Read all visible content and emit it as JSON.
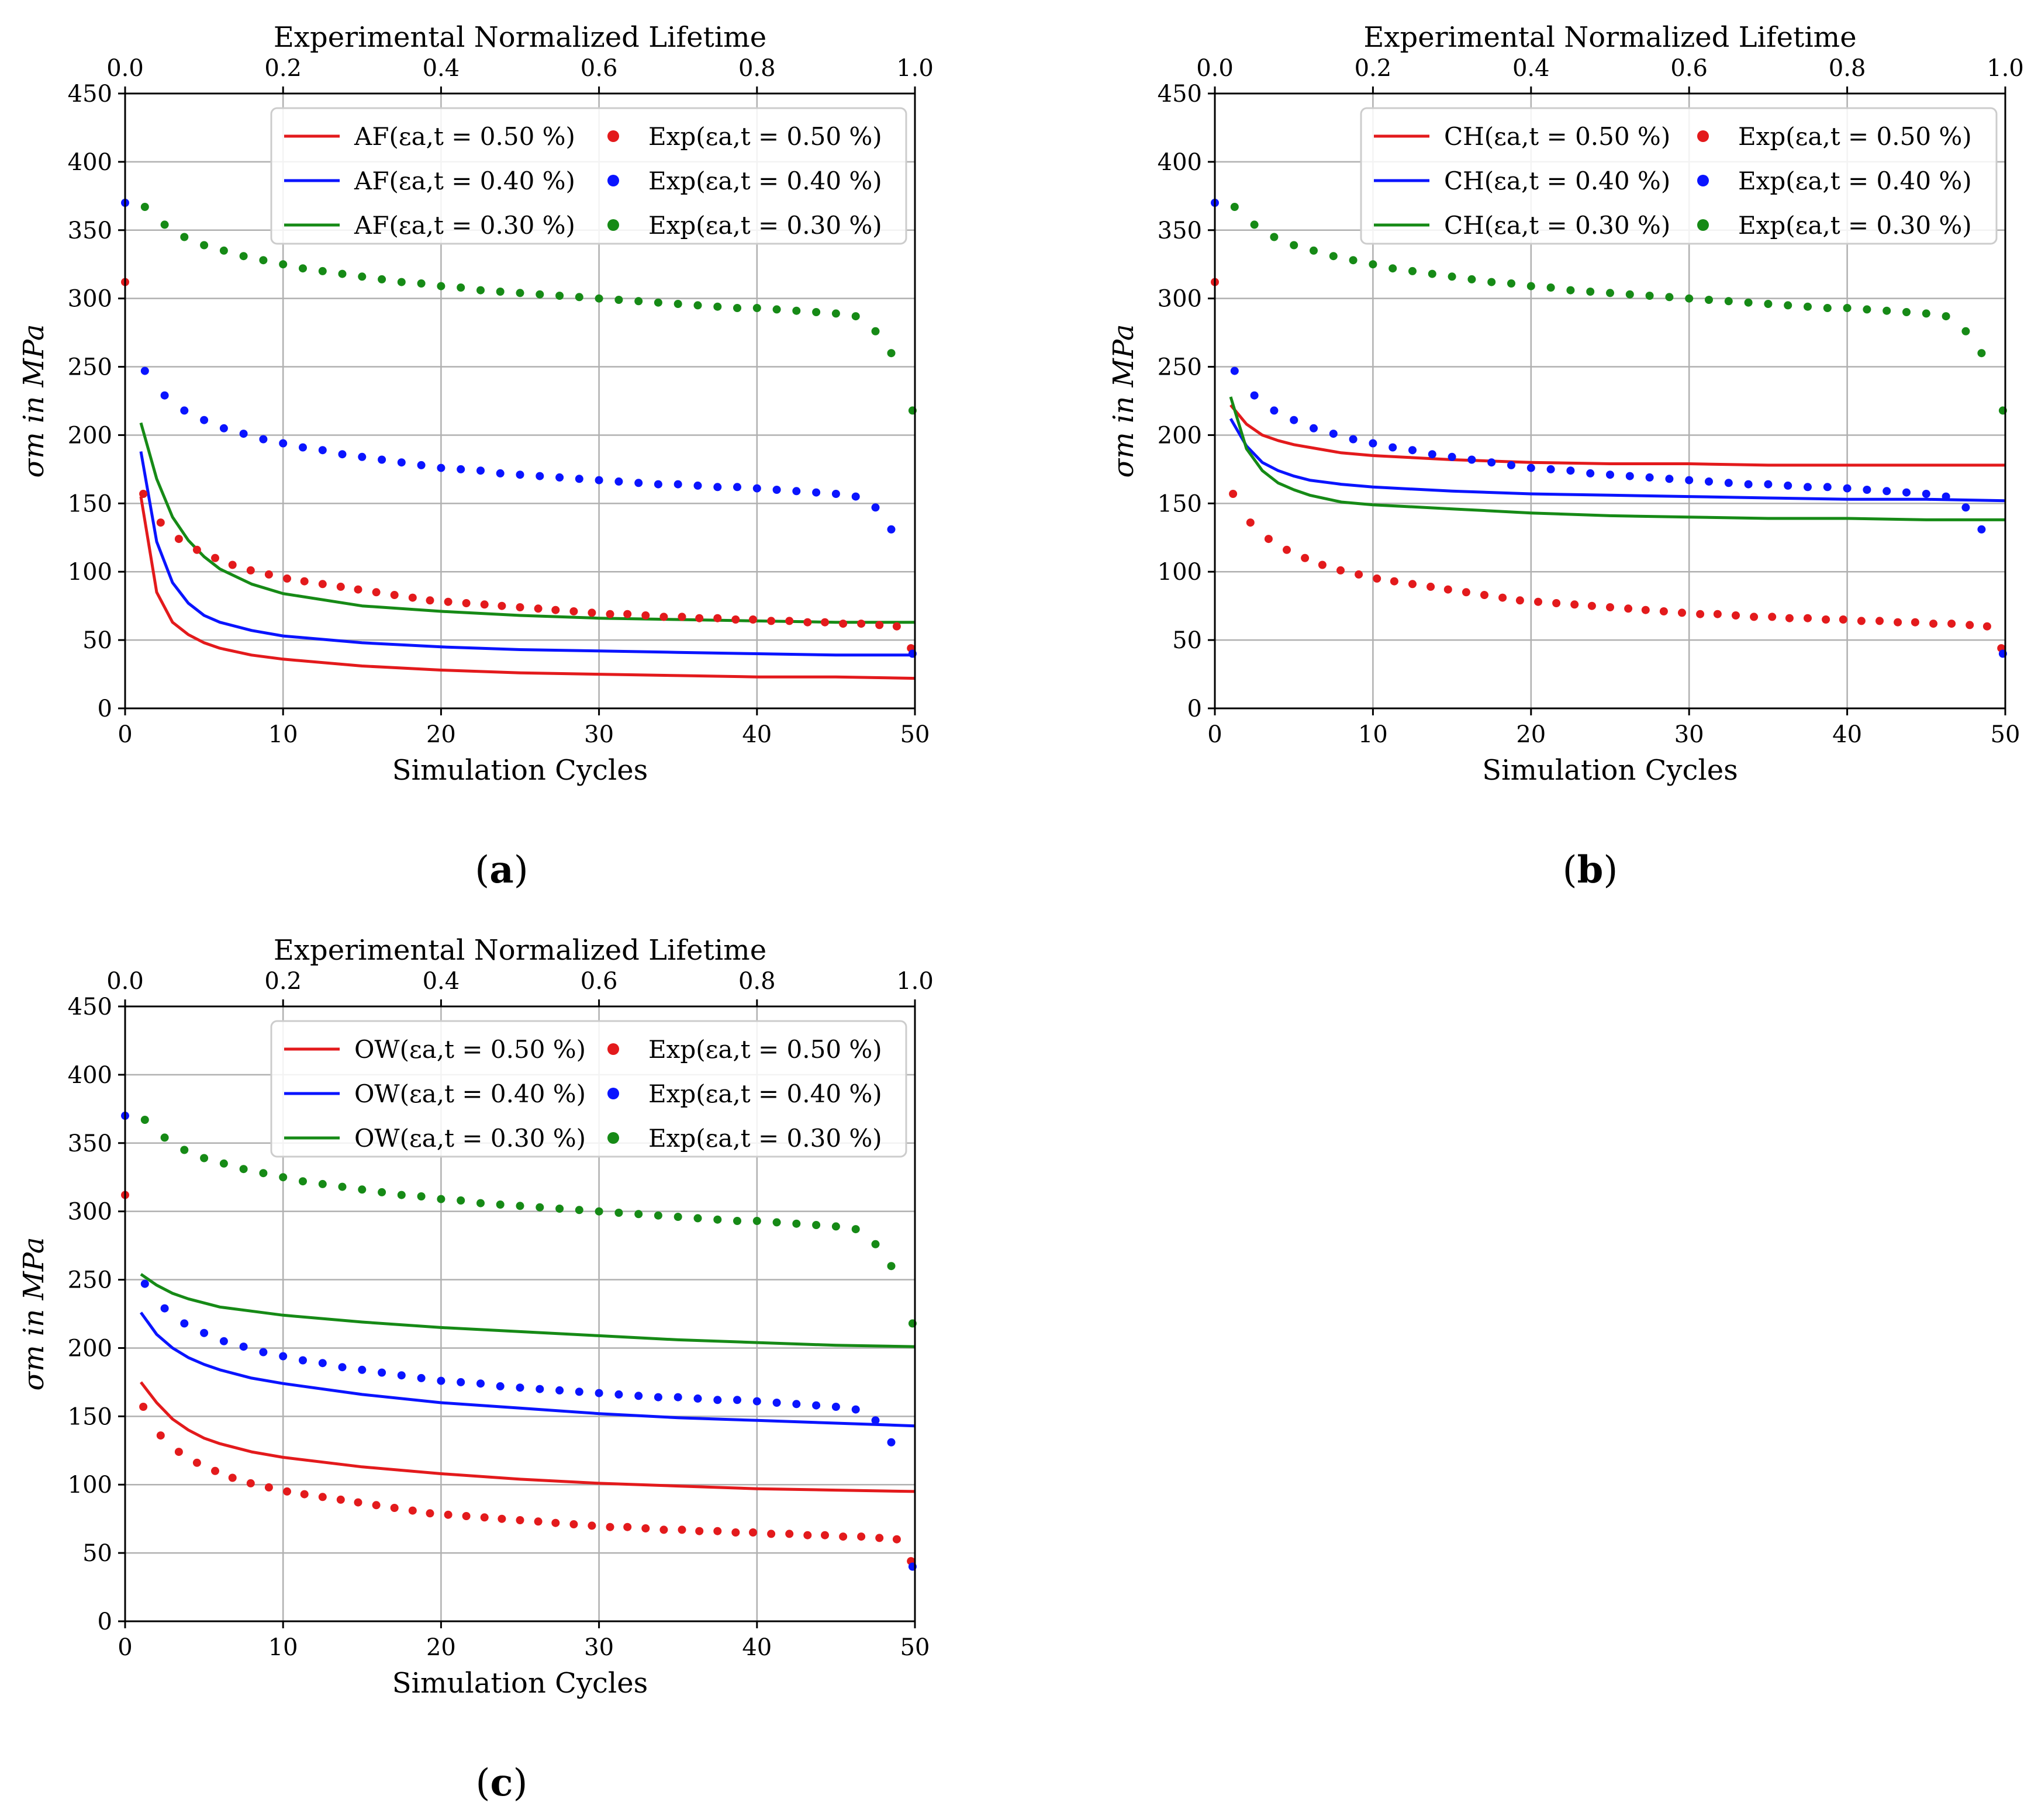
{
  "colors": {
    "red": "#e31a1c",
    "blue": "#0a14ff",
    "green": "#168a16",
    "grid": "#b0b0b0",
    "axis": "#000000"
  },
  "chart_data": [
    {
      "type": "line",
      "panel": "a",
      "panel_label": "a",
      "top_xlabel": "Experimental Normalized Lifetime",
      "top_xlim": [
        0,
        1
      ],
      "top_ticks": [
        "0.0",
        "0.2",
        "0.4",
        "0.6",
        "0.8",
        "1.0"
      ],
      "xlabel": "Simulation Cycles",
      "ylabel": "σm in MPa",
      "xlim": [
        0,
        50
      ],
      "ylim": [
        0,
        450
      ],
      "xticks": [
        "0",
        "10",
        "20",
        "30",
        "40",
        "50"
      ],
      "yticks": [
        "0",
        "50",
        "100",
        "150",
        "200",
        "250",
        "300",
        "350",
        "400",
        "450"
      ],
      "grid": true,
      "legend_position": "top-right",
      "legend": [
        {
          "name": "AF(εa,t = 0.50 %)",
          "color": "red",
          "kind": "line"
        },
        {
          "name": "Exp(εa,t = 0.50 %)",
          "color": "red",
          "kind": "dot"
        },
        {
          "name": "AF(εa,t = 0.40 %)",
          "color": "blue",
          "kind": "line"
        },
        {
          "name": "Exp(εa,t = 0.40 %)",
          "color": "blue",
          "kind": "dot"
        },
        {
          "name": "AF(εa,t = 0.30 %)",
          "color": "green",
          "kind": "line"
        },
        {
          "name": "Exp(εa,t = 0.30 %)",
          "color": "green",
          "kind": "dot"
        }
      ],
      "series": [
        {
          "name": "AF 0.50",
          "color": "red",
          "x": [
            1,
            2,
            3,
            4,
            5,
            6,
            8,
            10,
            15,
            20,
            25,
            30,
            35,
            40,
            45,
            50
          ],
          "y": [
            155,
            85,
            63,
            54,
            48,
            44,
            39,
            36,
            31,
            28,
            26,
            25,
            24,
            23,
            23,
            22
          ]
        },
        {
          "name": "AF 0.40",
          "color": "blue",
          "x": [
            1,
            2,
            3,
            4,
            5,
            6,
            8,
            10,
            15,
            20,
            25,
            30,
            35,
            40,
            45,
            50
          ],
          "y": [
            188,
            122,
            92,
            77,
            68,
            63,
            57,
            53,
            48,
            45,
            43,
            42,
            41,
            40,
            39,
            39
          ]
        },
        {
          "name": "AF 0.30",
          "color": "green",
          "x": [
            1,
            2,
            3,
            4,
            5,
            6,
            8,
            10,
            15,
            20,
            25,
            30,
            35,
            40,
            45,
            50
          ],
          "y": [
            209,
            168,
            140,
            123,
            111,
            102,
            91,
            84,
            75,
            71,
            68,
            66,
            65,
            64,
            63,
            63
          ]
        }
      ]
    },
    {
      "type": "line",
      "panel": "b",
      "panel_label": "b",
      "top_xlabel": "Experimental Normalized Lifetime",
      "top_xlim": [
        0,
        1
      ],
      "top_ticks": [
        "0.0",
        "0.2",
        "0.4",
        "0.6",
        "0.8",
        "1.0"
      ],
      "xlabel": "Simulation Cycles",
      "ylabel": "σm in MPa",
      "xlim": [
        0,
        50
      ],
      "ylim": [
        0,
        450
      ],
      "xticks": [
        "0",
        "10",
        "20",
        "30",
        "40",
        "50"
      ],
      "yticks": [
        "0",
        "50",
        "100",
        "150",
        "200",
        "250",
        "300",
        "350",
        "400",
        "450"
      ],
      "grid": true,
      "legend_position": "top-right",
      "legend": [
        {
          "name": "CH(εa,t = 0.50 %)",
          "color": "red",
          "kind": "line"
        },
        {
          "name": "Exp(εa,t = 0.50 %)",
          "color": "red",
          "kind": "dot"
        },
        {
          "name": "CH(εa,t = 0.40 %)",
          "color": "blue",
          "kind": "line"
        },
        {
          "name": "Exp(εa,t = 0.40 %)",
          "color": "blue",
          "kind": "dot"
        },
        {
          "name": "CH(εa,t = 0.30 %)",
          "color": "green",
          "kind": "line"
        },
        {
          "name": "Exp(εa,t = 0.30 %)",
          "color": "green",
          "kind": "dot"
        }
      ],
      "series": [
        {
          "name": "CH 0.50",
          "color": "red",
          "x": [
            1,
            2,
            3,
            4,
            5,
            6,
            8,
            10,
            15,
            20,
            25,
            30,
            35,
            40,
            45,
            50
          ],
          "y": [
            222,
            208,
            200,
            196,
            193,
            191,
            187,
            185,
            182,
            180,
            179,
            179,
            178,
            178,
            178,
            178
          ]
        },
        {
          "name": "CH 0.40",
          "color": "blue",
          "x": [
            1,
            2,
            3,
            4,
            5,
            6,
            8,
            10,
            15,
            20,
            25,
            30,
            35,
            40,
            45,
            50
          ],
          "y": [
            212,
            192,
            180,
            174,
            170,
            167,
            164,
            162,
            159,
            157,
            156,
            155,
            154,
            153,
            153,
            152
          ]
        },
        {
          "name": "CH 0.30",
          "color": "green",
          "x": [
            1,
            2,
            3,
            4,
            5,
            6,
            8,
            10,
            15,
            20,
            25,
            30,
            35,
            40,
            45,
            50
          ],
          "y": [
            228,
            190,
            174,
            165,
            160,
            156,
            151,
            149,
            146,
            143,
            141,
            140,
            139,
            139,
            138,
            138
          ]
        }
      ]
    },
    {
      "type": "line",
      "panel": "c",
      "panel_label": "c",
      "top_xlabel": "Experimental Normalized Lifetime",
      "top_xlim": [
        0,
        1
      ],
      "top_ticks": [
        "0.0",
        "0.2",
        "0.4",
        "0.6",
        "0.8",
        "1.0"
      ],
      "xlabel": "Simulation Cycles",
      "ylabel": "σm in MPa",
      "xlim": [
        0,
        50
      ],
      "ylim": [
        0,
        450
      ],
      "xticks": [
        "0",
        "10",
        "20",
        "30",
        "40",
        "50"
      ],
      "yticks": [
        "0",
        "50",
        "100",
        "150",
        "200",
        "250",
        "300",
        "350",
        "400",
        "450"
      ],
      "grid": true,
      "legend_position": "top-right",
      "legend": [
        {
          "name": "OW(εa,t = 0.50 %)",
          "color": "red",
          "kind": "line"
        },
        {
          "name": "Exp(εa,t = 0.50 %)",
          "color": "red",
          "kind": "dot"
        },
        {
          "name": "OW(εa,t = 0.40 %)",
          "color": "blue",
          "kind": "line"
        },
        {
          "name": "Exp(εa,t = 0.40 %)",
          "color": "blue",
          "kind": "dot"
        },
        {
          "name": "OW(εa,t = 0.30 %)",
          "color": "green",
          "kind": "line"
        },
        {
          "name": "Exp(εa,t = 0.30 %)",
          "color": "green",
          "kind": "dot"
        }
      ],
      "series": [
        {
          "name": "OW 0.50",
          "color": "red",
          "x": [
            1,
            2,
            3,
            4,
            5,
            6,
            8,
            10,
            15,
            20,
            25,
            30,
            35,
            40,
            45,
            50
          ],
          "y": [
            175,
            160,
            148,
            140,
            134,
            130,
            124,
            120,
            113,
            108,
            104,
            101,
            99,
            97,
            96,
            95
          ]
        },
        {
          "name": "OW 0.40",
          "color": "blue",
          "x": [
            1,
            2,
            3,
            4,
            5,
            6,
            8,
            10,
            15,
            20,
            25,
            30,
            35,
            40,
            45,
            50
          ],
          "y": [
            226,
            210,
            200,
            193,
            188,
            184,
            178,
            174,
            166,
            160,
            156,
            152,
            149,
            147,
            145,
            143
          ]
        },
        {
          "name": "OW 0.30",
          "color": "green",
          "x": [
            1,
            2,
            3,
            4,
            5,
            6,
            8,
            10,
            15,
            20,
            25,
            30,
            35,
            40,
            45,
            50
          ],
          "y": [
            254,
            246,
            240,
            236,
            233,
            230,
            227,
            224,
            219,
            215,
            212,
            209,
            206,
            204,
            202,
            201
          ]
        }
      ]
    }
  ],
  "experimental": [
    {
      "name": "Exp 0.50",
      "color": "red",
      "x": [
        0.0,
        0.023,
        0.045,
        0.068,
        0.091,
        0.114,
        0.136,
        0.159,
        0.182,
        0.205,
        0.227,
        0.25,
        0.273,
        0.295,
        0.318,
        0.341,
        0.364,
        0.386,
        0.409,
        0.432,
        0.455,
        0.477,
        0.5,
        0.523,
        0.545,
        0.568,
        0.591,
        0.614,
        0.636,
        0.659,
        0.682,
        0.705,
        0.727,
        0.75,
        0.773,
        0.795,
        0.818,
        0.841,
        0.864,
        0.886,
        0.909,
        0.932,
        0.955,
        0.977,
        0.995
      ],
      "y": [
        312,
        157,
        136,
        124,
        116,
        110,
        105,
        101,
        98,
        95,
        93,
        91,
        89,
        87,
        85,
        83,
        81,
        79,
        78,
        77,
        76,
        75,
        74,
        73,
        72,
        71,
        70,
        69,
        69,
        68,
        67,
        67,
        66,
        66,
        65,
        65,
        64,
        64,
        63,
        63,
        62,
        62,
        61,
        60,
        44
      ]
    },
    {
      "name": "Exp 0.40",
      "color": "blue",
      "x": [
        0.0,
        0.025,
        0.05,
        0.075,
        0.1,
        0.125,
        0.15,
        0.175,
        0.2,
        0.225,
        0.25,
        0.275,
        0.3,
        0.325,
        0.35,
        0.375,
        0.4,
        0.425,
        0.45,
        0.475,
        0.5,
        0.525,
        0.55,
        0.575,
        0.6,
        0.625,
        0.65,
        0.675,
        0.7,
        0.725,
        0.75,
        0.775,
        0.8,
        0.825,
        0.85,
        0.875,
        0.9,
        0.925,
        0.95,
        0.97,
        0.997
      ],
      "y": [
        370,
        247,
        229,
        218,
        211,
        205,
        201,
        197,
        194,
        191,
        189,
        186,
        184,
        182,
        180,
        178,
        176,
        175,
        174,
        172,
        171,
        170,
        169,
        168,
        167,
        166,
        165,
        164,
        164,
        163,
        162,
        162,
        161,
        160,
        159,
        158,
        157,
        155,
        147,
        131,
        40
      ]
    },
    {
      "name": "Exp 0.30",
      "color": "green",
      "x": [
        0.025,
        0.05,
        0.075,
        0.1,
        0.125,
        0.15,
        0.175,
        0.2,
        0.225,
        0.25,
        0.275,
        0.3,
        0.325,
        0.35,
        0.375,
        0.4,
        0.425,
        0.45,
        0.475,
        0.5,
        0.525,
        0.55,
        0.575,
        0.6,
        0.625,
        0.65,
        0.675,
        0.7,
        0.725,
        0.75,
        0.775,
        0.8,
        0.825,
        0.85,
        0.875,
        0.9,
        0.925,
        0.95,
        0.97,
        0.997
      ],
      "y": [
        367,
        354,
        345,
        339,
        335,
        331,
        328,
        325,
        322,
        320,
        318,
        316,
        314,
        312,
        311,
        309,
        308,
        306,
        305,
        304,
        303,
        302,
        301,
        300,
        299,
        298,
        297,
        296,
        295,
        294,
        293,
        293,
        292,
        291,
        290,
        289,
        287,
        276,
        260,
        218
      ]
    }
  ]
}
